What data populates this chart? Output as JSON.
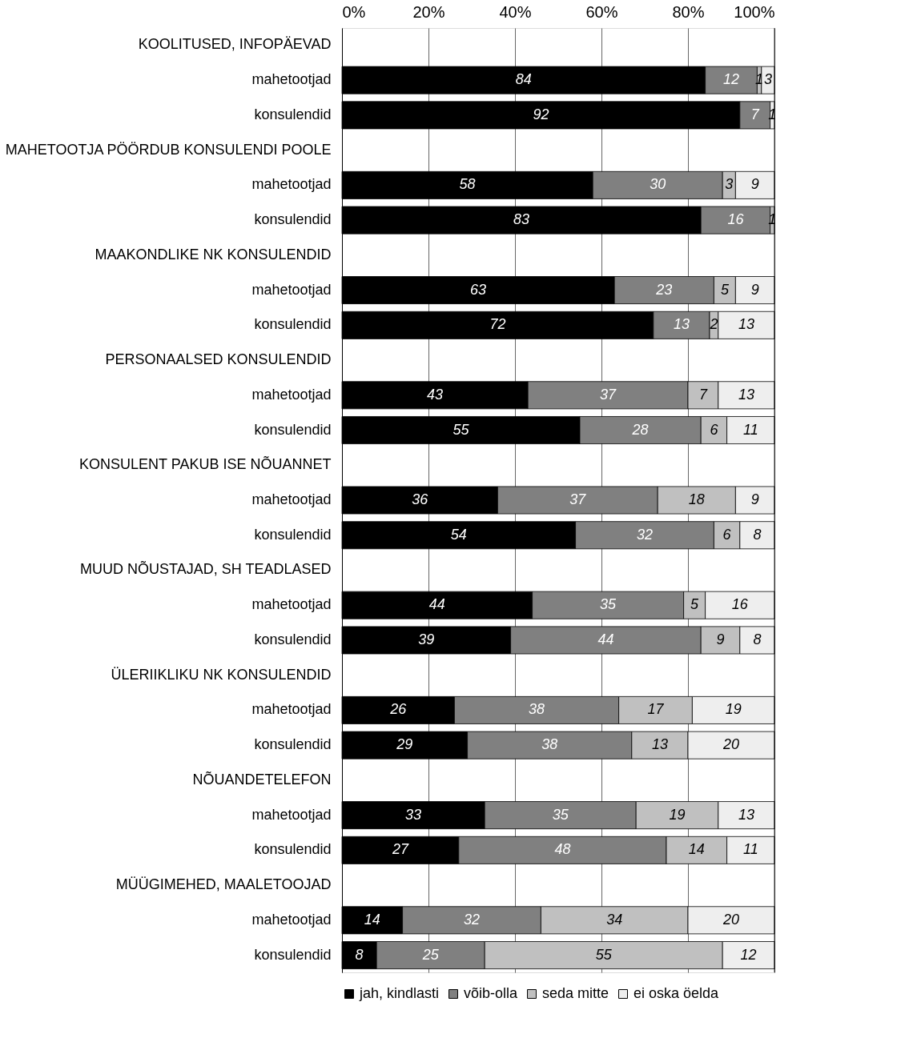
{
  "chart_data": {
    "type": "bar",
    "orientation": "horizontal",
    "stacked": true,
    "data_labels": true,
    "grid": "x",
    "legend": "bottom",
    "categories": [
      "KOOLITUSED, INFOPÄEVAD",
      "mahetootjad",
      "konsulendid",
      "MAHETOOTJA PÖÖRDUB KONSULENDI POOLE",
      "mahetootjad",
      "konsulendid",
      "MAAKONDLIKE NK KONSULENDID",
      "mahetootjad",
      "konsulendid",
      "PERSONAALSED KONSULENDID",
      "mahetootjad",
      "konsulendid",
      "KONSULENT PAKUB ISE NÕUANNET",
      "mahetootjad",
      "konsulendid",
      "MUUD NÕUSTAJAD, SH TEADLASED",
      "mahetootjad",
      "konsulendid",
      "ÜLERIIKLIKU NK KONSULENDID",
      "mahetootjad",
      "konsulendid",
      "NÕUANDETELEFON",
      "mahetootjad",
      "konsulendid",
      "MÜÜGIMEHED, MAALETOOJAD",
      "mahetootjad",
      "konsulendid"
    ],
    "series": [
      {
        "name": "jah, kindlasti",
        "color": "#000000",
        "values": [
          null,
          84,
          92,
          null,
          58,
          83,
          null,
          63,
          72,
          null,
          43,
          55,
          null,
          36,
          54,
          null,
          44,
          39,
          null,
          26,
          29,
          null,
          33,
          27,
          null,
          14,
          8
        ]
      },
      {
        "name": "võib-olla",
        "color": "#808080",
        "values": [
          null,
          12,
          7,
          null,
          30,
          16,
          null,
          23,
          13,
          null,
          37,
          28,
          null,
          37,
          32,
          null,
          35,
          44,
          null,
          38,
          38,
          null,
          35,
          48,
          null,
          32,
          25
        ]
      },
      {
        "name": "seda mitte",
        "color": "#c0c0c0",
        "values": [
          null,
          1,
          null,
          null,
          3,
          1,
          null,
          5,
          2,
          null,
          7,
          6,
          null,
          18,
          6,
          null,
          5,
          9,
          null,
          17,
          13,
          null,
          19,
          14,
          null,
          34,
          55
        ]
      },
      {
        "name": "ei oska öelda",
        "color": "#eeeeee",
        "values": [
          null,
          3,
          1,
          null,
          9,
          null,
          null,
          9,
          13,
          null,
          13,
          11,
          null,
          9,
          8,
          null,
          16,
          8,
          null,
          19,
          20,
          null,
          13,
          11,
          null,
          20,
          12
        ]
      }
    ],
    "xlim": [
      0,
      100
    ],
    "xticks": [
      {
        "value": 0,
        "label": "0%"
      },
      {
        "value": 20,
        "label": "20%"
      },
      {
        "value": 40,
        "label": "40%"
      },
      {
        "value": 60,
        "label": "60%"
      },
      {
        "value": 80,
        "label": "80%"
      },
      {
        "value": 100,
        "label": "100%"
      }
    ]
  }
}
